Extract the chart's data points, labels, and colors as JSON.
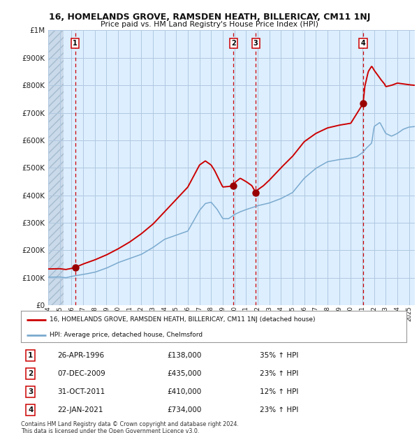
{
  "title": "16, HOMELANDS GROVE, RAMSDEN HEATH, BILLERICAY, CM11 1NJ",
  "subtitle": "Price paid vs. HM Land Registry's House Price Index (HPI)",
  "legend_line1": "16, HOMELANDS GROVE, RAMSDEN HEATH, BILLERICAY, CM11 1NJ (detached house)",
  "legend_line2": "HPI: Average price, detached house, Chelmsford",
  "footer": "Contains HM Land Registry data © Crown copyright and database right 2024.\nThis data is licensed under the Open Government Licence v3.0.",
  "sale_points": [
    {
      "label": "1",
      "date": "26-APR-1996",
      "price": 138000,
      "pct": "35%",
      "dir": "↑",
      "year": 1996.32
    },
    {
      "label": "2",
      "date": "07-DEC-2009",
      "price": 435000,
      "pct": "23%",
      "dir": "↑",
      "year": 2009.92
    },
    {
      "label": "3",
      "date": "31-OCT-2011",
      "price": 410000,
      "pct": "12%",
      "dir": "↑",
      "year": 2011.83
    },
    {
      "label": "4",
      "date": "22-JAN-2021",
      "price": 734000,
      "pct": "23%",
      "dir": "↑",
      "year": 2021.06
    }
  ],
  "red_line_color": "#cc0000",
  "blue_line_color": "#7aaace",
  "sale_marker_color": "#990000",
  "vline_color": "#cc0000",
  "grid_color": "#b0c8e0",
  "bg_color": "#ddeeff",
  "hatch_color": "#c8d8e8",
  "ylim": [
    0,
    1000000
  ],
  "yticks": [
    0,
    100000,
    200000,
    300000,
    400000,
    500000,
    600000,
    700000,
    800000,
    900000,
    1000000
  ],
  "xlim_start": 1994.0,
  "xlim_end": 2025.5,
  "xticks": [
    1994,
    1995,
    1996,
    1997,
    1998,
    1999,
    2000,
    2001,
    2002,
    2003,
    2004,
    2005,
    2006,
    2007,
    2008,
    2009,
    2010,
    2011,
    2012,
    2013,
    2014,
    2015,
    2016,
    2017,
    2018,
    2019,
    2020,
    2021,
    2022,
    2023,
    2024,
    2025
  ],
  "hpi_key_years": [
    1994,
    1995,
    1995.5,
    1996,
    1997,
    1998,
    1999,
    2000,
    2001,
    2002,
    2003,
    2004,
    2005,
    2006,
    2007,
    2007.5,
    2008,
    2008.5,
    2009,
    2009.5,
    2010,
    2010.5,
    2011,
    2011.5,
    2012,
    2013,
    2014,
    2015,
    2016,
    2017,
    2018,
    2019,
    2020,
    2020.5,
    2021,
    2021.3,
    2021.8,
    2022,
    2022.5,
    2023,
    2023.5,
    2024,
    2024.5,
    2025,
    2025.5
  ],
  "hpi_key_values": [
    102000,
    103000,
    100000,
    105000,
    112000,
    120000,
    135000,
    155000,
    170000,
    185000,
    210000,
    240000,
    255000,
    270000,
    345000,
    370000,
    375000,
    350000,
    315000,
    315000,
    330000,
    340000,
    348000,
    355000,
    362000,
    372000,
    388000,
    410000,
    462000,
    498000,
    522000,
    530000,
    535000,
    540000,
    555000,
    570000,
    590000,
    650000,
    665000,
    625000,
    615000,
    625000,
    640000,
    648000,
    650000
  ],
  "red_key_years": [
    1994,
    1995,
    1995.5,
    1996,
    1996.32,
    1997,
    1998,
    1999,
    2000,
    2001,
    2002,
    2003,
    2004,
    2005,
    2006,
    2007,
    2007.5,
    2008,
    2008.3,
    2008.7,
    2009,
    2009.5,
    2009.92,
    2010,
    2010.5,
    2011,
    2011.5,
    2011.83,
    2012,
    2012.5,
    2013,
    2014,
    2015,
    2016,
    2017,
    2018,
    2019,
    2020,
    2021.06,
    2021.2,
    2021.5,
    2021.8,
    2022,
    2022.3,
    2022.6,
    2022.9,
    2023,
    2023.5,
    2024,
    2024.5,
    2025,
    2025.5
  ],
  "red_key_values": [
    132000,
    133000,
    130000,
    134000,
    138000,
    150000,
    165000,
    183000,
    205000,
    230000,
    260000,
    295000,
    340000,
    385000,
    430000,
    510000,
    525000,
    510000,
    490000,
    455000,
    430000,
    432000,
    435000,
    445000,
    462000,
    450000,
    435000,
    410000,
    420000,
    435000,
    455000,
    500000,
    542000,
    595000,
    625000,
    645000,
    655000,
    662000,
    734000,
    795000,
    850000,
    870000,
    855000,
    838000,
    820000,
    805000,
    795000,
    800000,
    808000,
    805000,
    802000,
    800000
  ]
}
